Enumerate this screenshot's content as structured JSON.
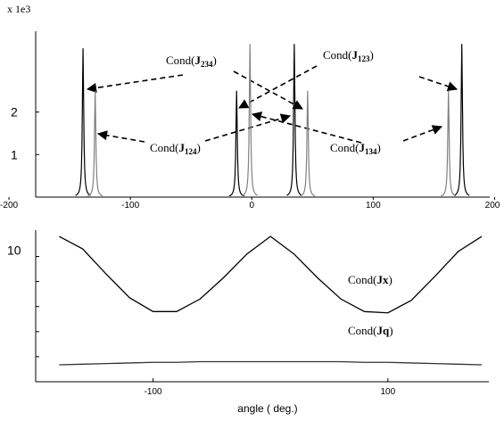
{
  "chart_data": [
    {
      "type": "spikes",
      "y_unit": "x 1e3",
      "xlim": [
        -178,
        196
      ],
      "ylim": [
        0,
        3.9
      ],
      "xticks": [
        -200,
        -100,
        0,
        100,
        200
      ],
      "yticks": [
        1,
        2
      ],
      "series": [
        {
          "color": "#000000",
          "x": [
            -139,
            -12.5,
            35,
            173
          ],
          "values": [
            3.5,
            2.5,
            3.6,
            3.6
          ]
        },
        {
          "color": "#808080",
          "x": [
            -129,
            -1.5,
            46,
            162
          ],
          "values": [
            2.5,
            3.6,
            2.5,
            2.5
          ]
        }
      ],
      "annotations": [
        {
          "prefix": "Cond(",
          "symbol": "J",
          "sub": "234",
          "suffix": ")"
        },
        {
          "prefix": "Cond(",
          "symbol": "J",
          "sub": "123",
          "suffix": ")"
        },
        {
          "prefix": "Cond(",
          "symbol": "J",
          "sub": "124",
          "suffix": ")"
        },
        {
          "prefix": "Cond(",
          "symbol": "J",
          "sub": "134",
          "suffix": ")"
        }
      ]
    },
    {
      "type": "line",
      "xlabel": "angle ( deg.)",
      "xlim": [
        -200,
        186
      ],
      "ylim": [
        0,
        12.1
      ],
      "xticks": [
        -100,
        100
      ],
      "yticks": [
        10
      ],
      "yminor": [
        2,
        4,
        6,
        8
      ],
      "x": [
        -180,
        -160,
        -140,
        -120,
        -100,
        -80,
        -60,
        -40,
        -20,
        0,
        20,
        40,
        60,
        80,
        100,
        120,
        140,
        160,
        180
      ],
      "series": [
        {
          "name": "Cond(Jx)",
          "prefix": "Cond(",
          "symbol": "Jx",
          "suffix": ")",
          "color": "#000000",
          "values": [
            11.6,
            10.6,
            8.6,
            6.7,
            5.6,
            5.6,
            6.6,
            8.3,
            10.2,
            11.6,
            10.2,
            8.3,
            6.6,
            5.6,
            5.5,
            6.5,
            8.4,
            10.4,
            11.6
          ]
        },
        {
          "name": "Cond(Jq)",
          "prefix": "Cond(",
          "symbol": "Jq",
          "suffix": ")",
          "color": "#333333",
          "values": [
            1.35,
            1.4,
            1.45,
            1.5,
            1.55,
            1.55,
            1.6,
            1.6,
            1.6,
            1.6,
            1.6,
            1.6,
            1.6,
            1.55,
            1.55,
            1.5,
            1.45,
            1.4,
            1.35
          ]
        }
      ]
    }
  ]
}
